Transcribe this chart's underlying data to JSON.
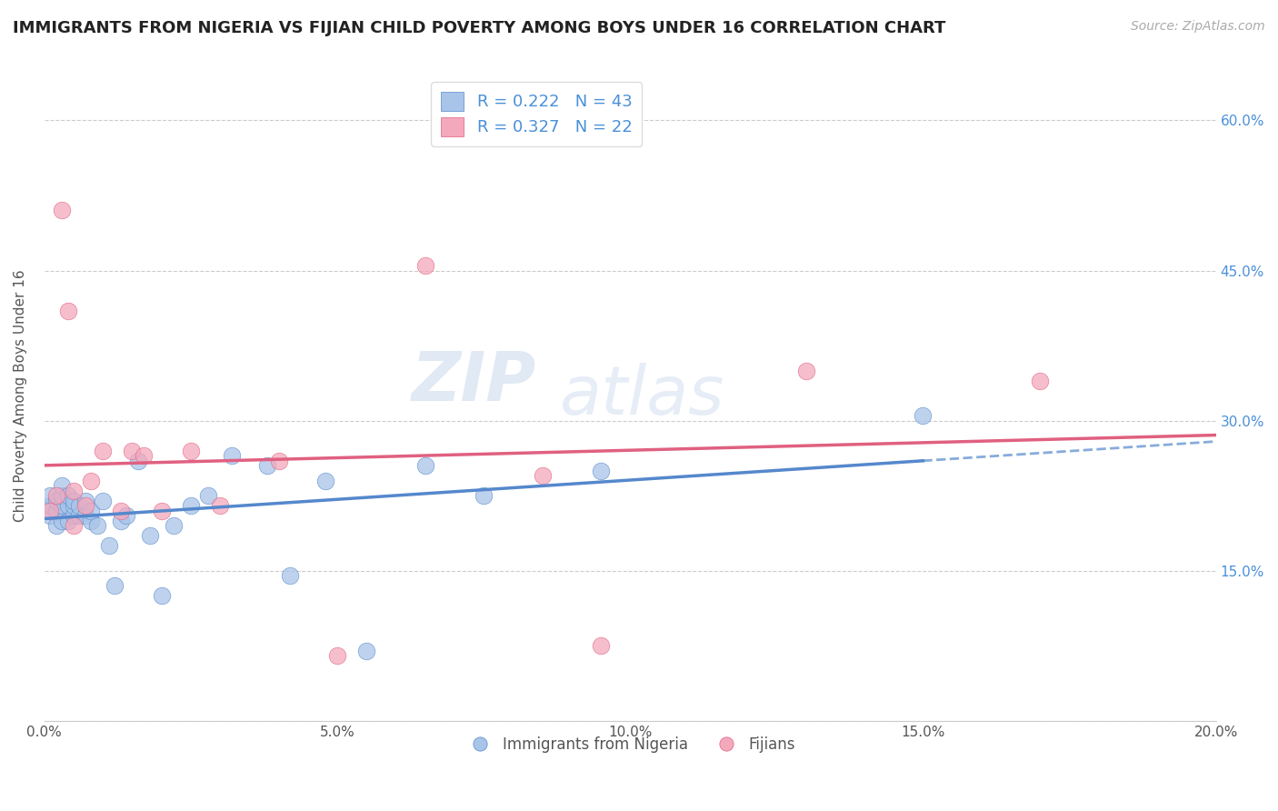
{
  "title": "IMMIGRANTS FROM NIGERIA VS FIJIAN CHILD POVERTY AMONG BOYS UNDER 16 CORRELATION CHART",
  "source": "Source: ZipAtlas.com",
  "ylabel": "Child Poverty Among Boys Under 16",
  "xlim": [
    0.0,
    0.2
  ],
  "ylim": [
    0.0,
    0.65
  ],
  "xticks": [
    0.0,
    0.05,
    0.1,
    0.15,
    0.2
  ],
  "xticklabels": [
    "0.0%",
    "5.0%",
    "10.0%",
    "15.0%",
    "20.0%"
  ],
  "yticks": [
    0.0,
    0.15,
    0.3,
    0.45,
    0.6
  ],
  "yticklabels_right": [
    "",
    "15.0%",
    "30.0%",
    "45.0%",
    "60.0%"
  ],
  "nigeria_R": 0.222,
  "nigeria_N": 43,
  "fijian_R": 0.327,
  "fijian_N": 22,
  "nigeria_color": "#a8c4e8",
  "fijian_color": "#f4a8bc",
  "nigeria_line_color": "#5588cc",
  "fijian_line_color": "#e06080",
  "nigeria_x": [
    0.001,
    0.001,
    0.001,
    0.002,
    0.002,
    0.002,
    0.003,
    0.003,
    0.003,
    0.003,
    0.004,
    0.004,
    0.004,
    0.005,
    0.005,
    0.005,
    0.006,
    0.006,
    0.007,
    0.007,
    0.008,
    0.008,
    0.009,
    0.01,
    0.011,
    0.012,
    0.013,
    0.014,
    0.016,
    0.018,
    0.02,
    0.022,
    0.025,
    0.028,
    0.032,
    0.038,
    0.042,
    0.048,
    0.055,
    0.065,
    0.075,
    0.095,
    0.15
  ],
  "nigeria_y": [
    0.205,
    0.215,
    0.225,
    0.195,
    0.21,
    0.22,
    0.2,
    0.215,
    0.225,
    0.235,
    0.2,
    0.215,
    0.225,
    0.205,
    0.215,
    0.22,
    0.205,
    0.215,
    0.205,
    0.22,
    0.2,
    0.21,
    0.195,
    0.22,
    0.175,
    0.135,
    0.2,
    0.205,
    0.26,
    0.185,
    0.125,
    0.195,
    0.215,
    0.225,
    0.265,
    0.255,
    0.145,
    0.24,
    0.07,
    0.255,
    0.225,
    0.25,
    0.305
  ],
  "fijian_x": [
    0.001,
    0.002,
    0.003,
    0.004,
    0.005,
    0.005,
    0.007,
    0.008,
    0.01,
    0.013,
    0.015,
    0.017,
    0.02,
    0.025,
    0.03,
    0.04,
    0.05,
    0.065,
    0.085,
    0.095,
    0.13,
    0.17
  ],
  "fijian_y": [
    0.21,
    0.225,
    0.51,
    0.41,
    0.195,
    0.23,
    0.215,
    0.24,
    0.27,
    0.21,
    0.27,
    0.265,
    0.21,
    0.27,
    0.215,
    0.26,
    0.065,
    0.455,
    0.245,
    0.075,
    0.35,
    0.34
  ],
  "background_color": "#ffffff",
  "grid_color": "#cccccc"
}
